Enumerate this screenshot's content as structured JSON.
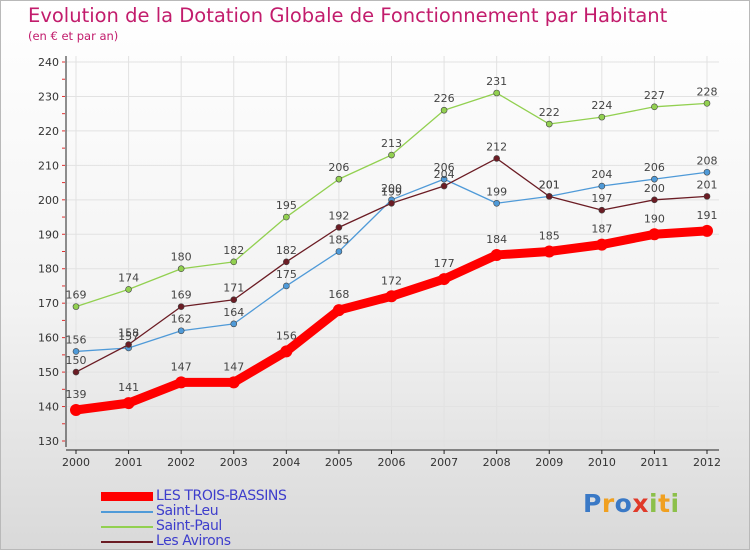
{
  "chart_data": {
    "type": "line",
    "title": "Evolution de la Dotation Globale de Fonctionnement par Habitant",
    "subtitle": "(en € et par an)",
    "xlabel": "",
    "ylabel": "",
    "categories": [
      "2000",
      "2001",
      "2002",
      "2003",
      "2004",
      "2005",
      "2006",
      "2007",
      "2008",
      "2009",
      "2010",
      "2011",
      "2012"
    ],
    "yticks": [
      "130",
      "140",
      "150",
      "160",
      "170",
      "180",
      "190",
      "200",
      "210",
      "220",
      "230",
      "240"
    ],
    "ylim": [
      130,
      240
    ],
    "grid": true,
    "series": [
      {
        "name": "Saint-Paul",
        "color": "#92d050",
        "values": [
          169,
          174,
          180,
          182,
          195,
          206,
          213,
          226,
          231,
          222,
          224,
          227,
          228
        ],
        "labels": [
          "169",
          "174",
          "180",
          "182",
          "195",
          "206",
          "213",
          "226",
          "231",
          "222",
          "224",
          "227",
          "228"
        ]
      },
      {
        "name": "Saint-Leu",
        "color": "#4f9ad8",
        "values": [
          156,
          157,
          162,
          164,
          175,
          185,
          200,
          206,
          199,
          201,
          204,
          206,
          208
        ],
        "labels": [
          "156",
          "157",
          "162",
          "164",
          "175",
          "185",
          "200",
          "206",
          "199",
          "201",
          "204",
          "206",
          "208"
        ]
      },
      {
        "name": "Les Avirons",
        "color": "#6b1c24",
        "values": [
          150,
          158,
          169,
          171,
          182,
          192,
          199,
          204,
          212,
          201,
          197,
          200,
          201
        ],
        "labels": [
          "150",
          "158",
          "169",
          "171",
          "182",
          "192",
          "199",
          "204",
          "212",
          "201",
          "197",
          "200",
          "201"
        ]
      },
      {
        "name": "LES TROIS-BASSINS",
        "color": "#ff0000",
        "values": [
          139,
          141,
          147,
          147,
          156,
          168,
          172,
          177,
          184,
          185,
          187,
          190,
          191
        ],
        "labels": [
          "139",
          "141",
          "147",
          "147",
          "156",
          "168",
          "172",
          "177",
          "184",
          "185",
          "187",
          "190",
          "191"
        ]
      }
    ],
    "legend": [
      {
        "name": "LES TROIS-BASSINS",
        "color": "#ff0000"
      },
      {
        "name": "Saint-Leu",
        "color": "#4f9ad8"
      },
      {
        "name": "Saint-Paul",
        "color": "#92d050"
      },
      {
        "name": "Les Avirons",
        "color": "#6b1c24"
      }
    ],
    "legend_position": "bottom-left"
  },
  "logo": {
    "letters": [
      "P",
      "r",
      "o",
      "x",
      "i",
      "t",
      "i"
    ],
    "colors": [
      "#3a79c6",
      "#f0a020",
      "#3a79c6",
      "#e03a2a",
      "#8cc04a",
      "#f0a020",
      "#8cc04a"
    ]
  }
}
